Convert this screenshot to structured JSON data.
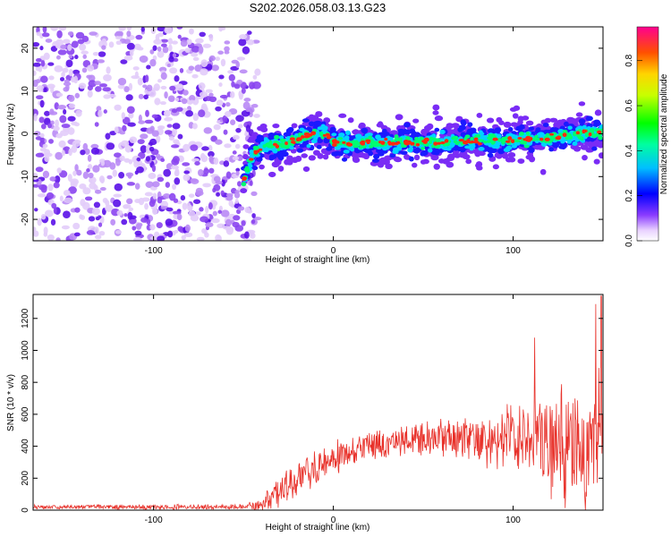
{
  "figure_title": "S202.2026.058.03.13.G23",
  "chart_data": [
    {
      "type": "heatmap",
      "title": "S202.2026.058.03.13.G23",
      "xlabel": "Height of straight line (km)",
      "ylabel": "Frequency (Hz)",
      "xlim": [
        -167,
        150
      ],
      "ylim": [
        -25,
        25
      ],
      "xticks": [
        -100,
        0,
        100
      ],
      "yticks": [
        -20,
        -10,
        0,
        10,
        20
      ],
      "noise_region_x": [
        -167,
        -50
      ],
      "signal_ridge": {
        "x": [
          -50,
          -45,
          -40,
          -30,
          -20,
          -10,
          -5,
          0,
          10,
          20,
          40,
          60,
          80,
          100,
          120,
          140,
          150
        ],
        "frequency": [
          -11,
          -5,
          -3,
          -2.5,
          -1.5,
          0,
          0.5,
          -2,
          -2.5,
          -2,
          -2,
          -2,
          -1.5,
          -1.5,
          -1,
          0,
          0.5
        ]
      },
      "colorbar": {
        "label": "Normalized spectral amplitude",
        "range": [
          0,
          0.95
        ],
        "ticks": [
          "0.0",
          "0.2",
          "0.4",
          "0.6",
          "0.8"
        ]
      }
    },
    {
      "type": "line",
      "xlabel": "Height of straight line (km)",
      "ylabel": "SNR (10 * v/v)",
      "xlim": [
        -167,
        150
      ],
      "ylim": [
        0,
        1350
      ],
      "xticks": [
        -100,
        0,
        100
      ],
      "yticks": [
        0,
        200,
        400,
        600,
        800,
        1000,
        1200
      ],
      "color": "#e8312a",
      "envelope": {
        "x": [
          -167,
          -50,
          -40,
          -35,
          -30,
          -20,
          -10,
          0,
          10,
          20,
          30,
          40,
          60,
          80,
          100,
          110,
          120,
          130,
          140,
          150
        ],
        "mean": [
          20,
          20,
          30,
          80,
          120,
          200,
          270,
          320,
          360,
          390,
          420,
          440,
          450,
          450,
          440,
          430,
          420,
          420,
          400,
          400
        ],
        "spread": [
          15,
          15,
          40,
          80,
          100,
          120,
          120,
          110,
          100,
          90,
          90,
          90,
          110,
          150,
          200,
          260,
          320,
          380,
          430,
          480
        ]
      },
      "peaks": [
        {
          "x": 112,
          "y": 1080
        },
        {
          "x": 146,
          "y": 1290
        },
        {
          "x": 149,
          "y": 1340
        }
      ]
    }
  ],
  "colors": {
    "line": "#e8312a",
    "axis": "#000000",
    "background": "#ffffff"
  }
}
